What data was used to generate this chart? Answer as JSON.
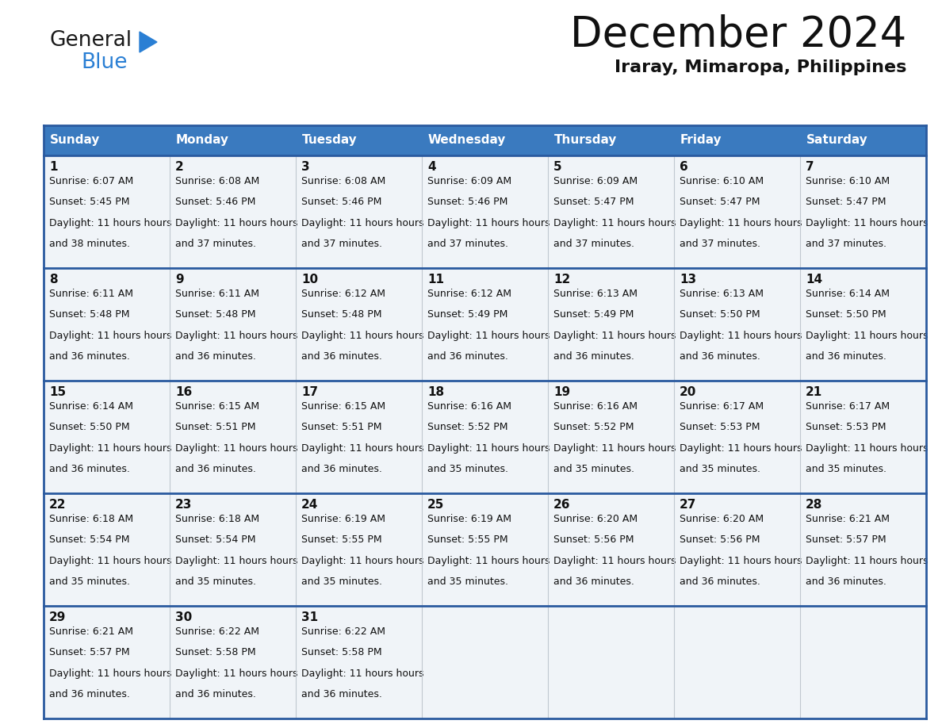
{
  "title": "December 2024",
  "subtitle": "Iraray, Mimaropa, Philippines",
  "header_color": "#3a7abf",
  "header_text_color": "#ffffff",
  "cell_bg_color": "#f0f4f8",
  "border_color": "#2a5a9f",
  "text_color": "#111111",
  "days_of_week": [
    "Sunday",
    "Monday",
    "Tuesday",
    "Wednesday",
    "Thursday",
    "Friday",
    "Saturday"
  ],
  "weeks": [
    [
      {
        "day": 1,
        "sunrise": "6:07 AM",
        "sunset": "5:45 PM",
        "daylight": "11 hours and 38 minutes."
      },
      {
        "day": 2,
        "sunrise": "6:08 AM",
        "sunset": "5:46 PM",
        "daylight": "11 hours and 37 minutes."
      },
      {
        "day": 3,
        "sunrise": "6:08 AM",
        "sunset": "5:46 PM",
        "daylight": "11 hours and 37 minutes."
      },
      {
        "day": 4,
        "sunrise": "6:09 AM",
        "sunset": "5:46 PM",
        "daylight": "11 hours and 37 minutes."
      },
      {
        "day": 5,
        "sunrise": "6:09 AM",
        "sunset": "5:47 PM",
        "daylight": "11 hours and 37 minutes."
      },
      {
        "day": 6,
        "sunrise": "6:10 AM",
        "sunset": "5:47 PM",
        "daylight": "11 hours and 37 minutes."
      },
      {
        "day": 7,
        "sunrise": "6:10 AM",
        "sunset": "5:47 PM",
        "daylight": "11 hours and 37 minutes."
      }
    ],
    [
      {
        "day": 8,
        "sunrise": "6:11 AM",
        "sunset": "5:48 PM",
        "daylight": "11 hours and 36 minutes."
      },
      {
        "day": 9,
        "sunrise": "6:11 AM",
        "sunset": "5:48 PM",
        "daylight": "11 hours and 36 minutes."
      },
      {
        "day": 10,
        "sunrise": "6:12 AM",
        "sunset": "5:48 PM",
        "daylight": "11 hours and 36 minutes."
      },
      {
        "day": 11,
        "sunrise": "6:12 AM",
        "sunset": "5:49 PM",
        "daylight": "11 hours and 36 minutes."
      },
      {
        "day": 12,
        "sunrise": "6:13 AM",
        "sunset": "5:49 PM",
        "daylight": "11 hours and 36 minutes."
      },
      {
        "day": 13,
        "sunrise": "6:13 AM",
        "sunset": "5:50 PM",
        "daylight": "11 hours and 36 minutes."
      },
      {
        "day": 14,
        "sunrise": "6:14 AM",
        "sunset": "5:50 PM",
        "daylight": "11 hours and 36 minutes."
      }
    ],
    [
      {
        "day": 15,
        "sunrise": "6:14 AM",
        "sunset": "5:50 PM",
        "daylight": "11 hours and 36 minutes."
      },
      {
        "day": 16,
        "sunrise": "6:15 AM",
        "sunset": "5:51 PM",
        "daylight": "11 hours and 36 minutes."
      },
      {
        "day": 17,
        "sunrise": "6:15 AM",
        "sunset": "5:51 PM",
        "daylight": "11 hours and 36 minutes."
      },
      {
        "day": 18,
        "sunrise": "6:16 AM",
        "sunset": "5:52 PM",
        "daylight": "11 hours and 35 minutes."
      },
      {
        "day": 19,
        "sunrise": "6:16 AM",
        "sunset": "5:52 PM",
        "daylight": "11 hours and 35 minutes."
      },
      {
        "day": 20,
        "sunrise": "6:17 AM",
        "sunset": "5:53 PM",
        "daylight": "11 hours and 35 minutes."
      },
      {
        "day": 21,
        "sunrise": "6:17 AM",
        "sunset": "5:53 PM",
        "daylight": "11 hours and 35 minutes."
      }
    ],
    [
      {
        "day": 22,
        "sunrise": "6:18 AM",
        "sunset": "5:54 PM",
        "daylight": "11 hours and 35 minutes."
      },
      {
        "day": 23,
        "sunrise": "6:18 AM",
        "sunset": "5:54 PM",
        "daylight": "11 hours and 35 minutes."
      },
      {
        "day": 24,
        "sunrise": "6:19 AM",
        "sunset": "5:55 PM",
        "daylight": "11 hours and 35 minutes."
      },
      {
        "day": 25,
        "sunrise": "6:19 AM",
        "sunset": "5:55 PM",
        "daylight": "11 hours and 35 minutes."
      },
      {
        "day": 26,
        "sunrise": "6:20 AM",
        "sunset": "5:56 PM",
        "daylight": "11 hours and 36 minutes."
      },
      {
        "day": 27,
        "sunrise": "6:20 AM",
        "sunset": "5:56 PM",
        "daylight": "11 hours and 36 minutes."
      },
      {
        "day": 28,
        "sunrise": "6:21 AM",
        "sunset": "5:57 PM",
        "daylight": "11 hours and 36 minutes."
      }
    ],
    [
      {
        "day": 29,
        "sunrise": "6:21 AM",
        "sunset": "5:57 PM",
        "daylight": "11 hours and 36 minutes."
      },
      {
        "day": 30,
        "sunrise": "6:22 AM",
        "sunset": "5:58 PM",
        "daylight": "11 hours and 36 minutes."
      },
      {
        "day": 31,
        "sunrise": "6:22 AM",
        "sunset": "5:58 PM",
        "daylight": "11 hours and 36 minutes."
      },
      null,
      null,
      null,
      null
    ]
  ],
  "logo_general_color": "#1a1a1a",
  "logo_blue_color": "#2a7fd4",
  "logo_triangle_color": "#2a7fd4",
  "fig_width": 11.88,
  "fig_height": 9.18,
  "dpi": 100
}
